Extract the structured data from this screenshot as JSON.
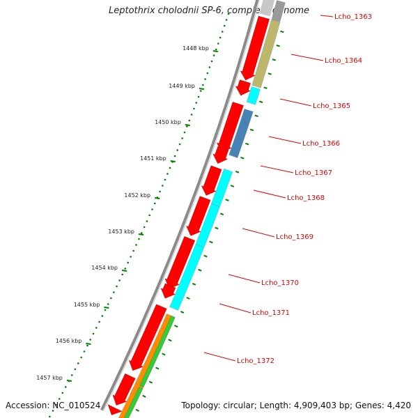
{
  "title": "Leptothrix cholodnii SP-6, complete genome",
  "accession": "Accession: NC_010524",
  "topology": "Topology: circular; Length: 4,909,403 bp; Genes: 4,420",
  "colors": {
    "backbone": "#8a8a8a",
    "forward_cds": "#ff0000",
    "label": "#e00000",
    "tick": "#008000",
    "cyan": "#00ffff",
    "khaki": "#bdb76b",
    "steelblue": "#4682b4",
    "orange": "#ff8c00",
    "green": "#32cd32"
  },
  "kbp_ticks": [
    "1448 kbp",
    "1449 kbp",
    "1450 kbp",
    "1451 kbp",
    "1452 kbp",
    "1453 kbp",
    "1454 kbp",
    "1455 kbp",
    "1456 kbp",
    "1457 kbp"
  ],
  "gene_labels": [
    "Lcho_1363",
    "Lcho_1364",
    "Lcho_1365",
    "Lcho_1366",
    "Lcho_1367",
    "Lcho_1368",
    "Lcho_1369",
    "Lcho_1370",
    "Lcho_1371",
    "Lcho_1372"
  ]
}
